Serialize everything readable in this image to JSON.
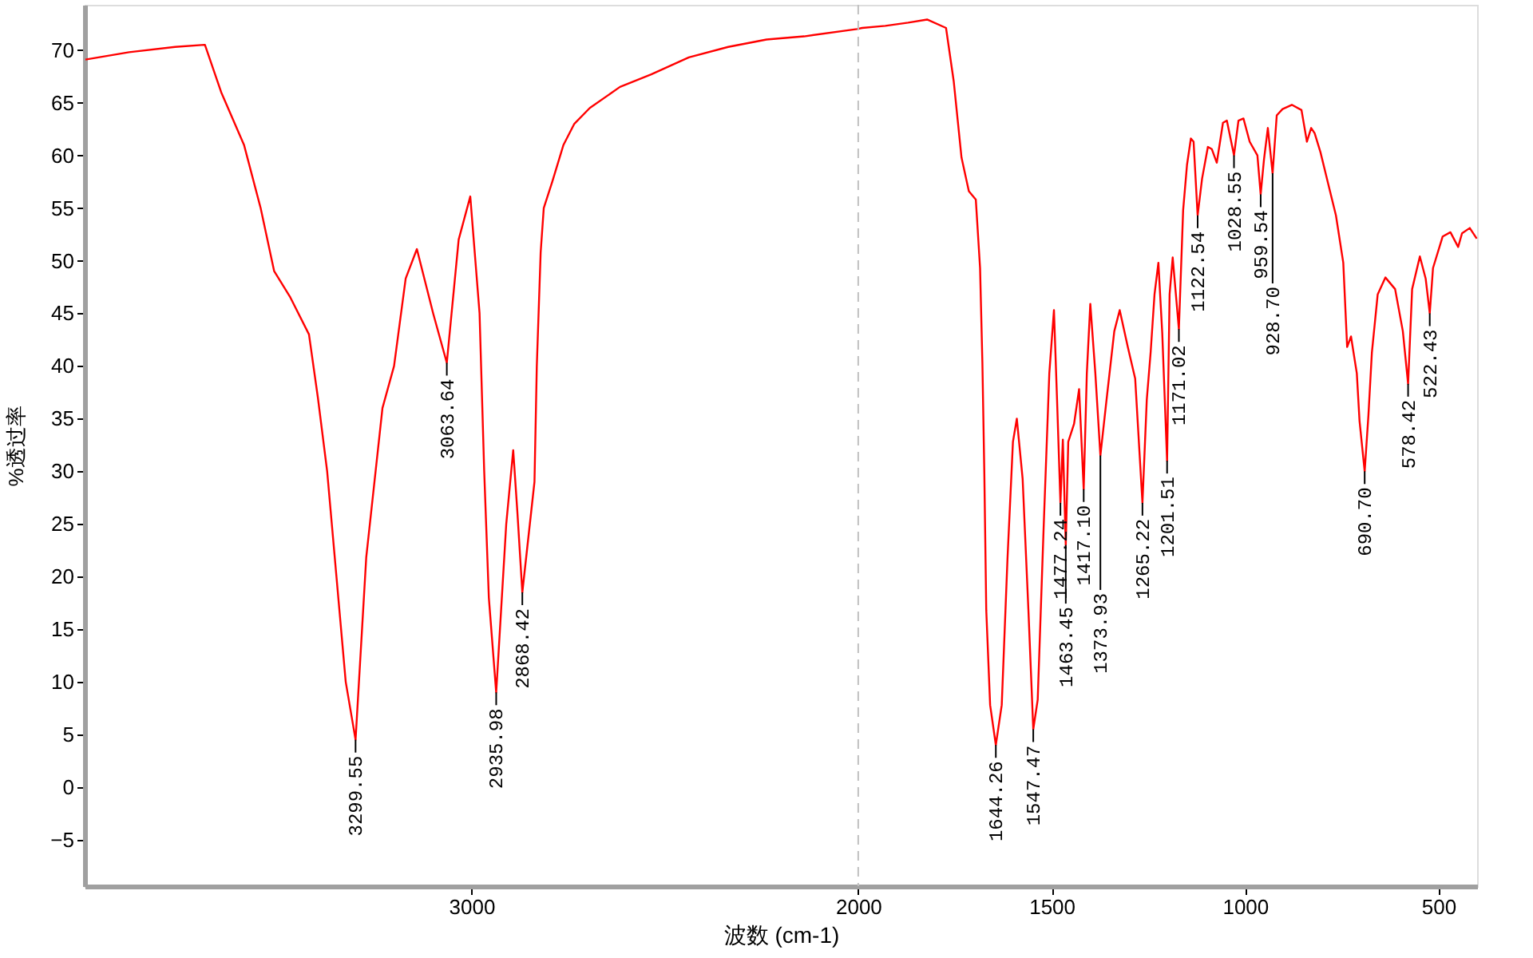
{
  "chart_data": {
    "type": "line",
    "xlabel": "波数 (cm-1)",
    "ylabel": "%透过率",
    "xlim": [
      4000,
      400
    ],
    "ylim": [
      -9.4,
      74.3
    ],
    "xticks": [
      3000,
      2000,
      1500,
      1000,
      500
    ],
    "yticks": [
      -5,
      0,
      5,
      10,
      15,
      20,
      25,
      30,
      35,
      40,
      45,
      50,
      55,
      60,
      65,
      70
    ],
    "grid": false,
    "marker": "none",
    "line_style": "solid",
    "ref_lines": [
      {
        "axis": "x",
        "value": 2000,
        "color": "#c0c0c0",
        "line_style": "dashed"
      }
    ],
    "series": [
      {
        "color": "#ff0000",
        "x": [
          3998,
          3885,
          3766,
          3689,
          3647,
          3588,
          3545,
          3510,
          3468,
          3420,
          3397,
          3373,
          3349,
          3325,
          3299.55,
          3272,
          3230,
          3200,
          3170,
          3141,
          3099,
          3063.64,
          3033,
          3003,
          2979,
          2967,
          2955,
          2935.98,
          2910,
          2892,
          2881,
          2868.42,
          2837,
          2831,
          2821,
          2813,
          2791,
          2762,
          2734,
          2694,
          2616,
          2535,
          2438,
          2336,
          2237,
          2140,
          2003,
          1990,
          1930,
          1871,
          1822,
          1773,
          1753,
          1733,
          1714,
          1696,
          1685,
          1679,
          1674,
          1669,
          1659,
          1644.26,
          1629,
          1614,
          1600,
          1590,
          1575,
          1560,
          1547.47,
          1536,
          1521,
          1506,
          1494,
          1486,
          1477.24,
          1471,
          1463.45,
          1457,
          1442,
          1429,
          1417.1,
          1409,
          1400,
          1387,
          1373.93,
          1358,
          1338,
          1324,
          1303,
          1284,
          1265.22,
          1254,
          1244,
          1234,
          1224,
          1214,
          1201.51,
          1195,
          1187,
          1171.02,
          1160,
          1150,
          1140,
          1133,
          1122.54,
          1111,
          1096,
          1086,
          1073,
          1057,
          1047,
          1028.55,
          1017,
          1004,
          988,
          968,
          959.54,
          951,
          941,
          928.7,
          918,
          903,
          879,
          854,
          840,
          829,
          820,
          805,
          785,
          765,
          746,
          736,
          726,
          711,
          704,
          690.7,
          681,
          672,
          657,
          637,
          612,
          592,
          578.42,
          568,
          548,
          533,
          522.43,
          514,
          489,
          469,
          449,
          439,
          419,
          401
        ],
        "values": [
          69.1,
          69.8,
          70.3,
          70.5,
          66,
          61,
          55,
          49,
          46.5,
          43,
          37,
          30,
          20,
          10,
          4.5,
          21.8,
          36,
          40,
          48.3,
          51.1,
          45,
          40.3,
          52,
          56.1,
          45,
          30,
          18,
          9,
          25,
          32,
          26,
          18.5,
          29,
          40,
          50.8,
          55,
          57.5,
          61,
          63,
          64.5,
          66.5,
          67.7,
          69.3,
          70.3,
          71,
          71.3,
          72,
          72.1,
          72.3,
          72.6,
          72.9,
          72.1,
          67,
          59.8,
          56.6,
          55.8,
          49.3,
          40.3,
          29.8,
          16.8,
          7.8,
          4,
          7.8,
          21.8,
          32.8,
          35,
          29.3,
          16.8,
          5.5,
          8.3,
          24.3,
          39.3,
          45.3,
          36.8,
          27,
          33,
          23,
          32.8,
          34.5,
          37.8,
          28.3,
          39.3,
          45.9,
          39.3,
          31.5,
          36.8,
          43.3,
          45.3,
          41.8,
          38.8,
          27,
          36.8,
          41.3,
          46.8,
          49.8,
          43.1,
          31,
          46.8,
          50.3,
          43.5,
          54.8,
          59.1,
          61.6,
          61.3,
          54.3,
          57.8,
          60.8,
          60.6,
          59.3,
          63.1,
          63.3,
          60,
          63.3,
          63.5,
          61.3,
          60,
          56.3,
          59.6,
          62.6,
          58.3,
          63.8,
          64.4,
          64.8,
          64.3,
          61.3,
          62.6,
          62.1,
          60.3,
          57.3,
          54.3,
          49.8,
          41.8,
          42.8,
          39.3,
          34.8,
          30,
          35.3,
          41.3,
          46.8,
          48.4,
          47.3,
          43.3,
          38.3,
          47.3,
          50.4,
          48.3,
          45,
          49.3,
          52.3,
          52.7,
          51.3,
          52.6,
          53.1,
          52.1
        ]
      }
    ],
    "annotations": [
      {
        "text": "3299.55",
        "x": 3299.55,
        "y": 4.5
      },
      {
        "text": "3063.64",
        "x": 3063.64,
        "y": 40.3
      },
      {
        "text": "2935.98",
        "x": 2935.98,
        "y": 9
      },
      {
        "text": "2868.42",
        "x": 2868.42,
        "y": 18.5
      },
      {
        "text": "1644.26",
        "x": 1644.26,
        "y": 4
      },
      {
        "text": "1547.47",
        "x": 1547.47,
        "y": 5.5
      },
      {
        "text": "1477.24",
        "x": 1477.24,
        "y": 27
      },
      {
        "text": "1463.45",
        "x": 1463.45,
        "y": 23
      },
      {
        "text": "1417.10",
        "x": 1417.1,
        "y": 28.3
      },
      {
        "text": "1373.93",
        "x": 1373.93,
        "y": 31.5
      },
      {
        "text": "1265.22",
        "x": 1265.22,
        "y": 27
      },
      {
        "text": "1201.51",
        "x": 1201.51,
        "y": 31
      },
      {
        "text": "1171.02",
        "x": 1171.02,
        "y": 43.5
      },
      {
        "text": "1122.54",
        "x": 1122.54,
        "y": 54.3
      },
      {
        "text": "1028.55",
        "x": 1028.55,
        "y": 60
      },
      {
        "text": "959.54",
        "x": 959.54,
        "y": 56.3
      },
      {
        "text": "928.70",
        "x": 928.7,
        "y": 58.3
      },
      {
        "text": "690.70",
        "x": 690.7,
        "y": 30
      },
      {
        "text": "578.42",
        "x": 578.42,
        "y": 38.3
      },
      {
        "text": "522.43",
        "x": 522.43,
        "y": 45
      }
    ]
  }
}
